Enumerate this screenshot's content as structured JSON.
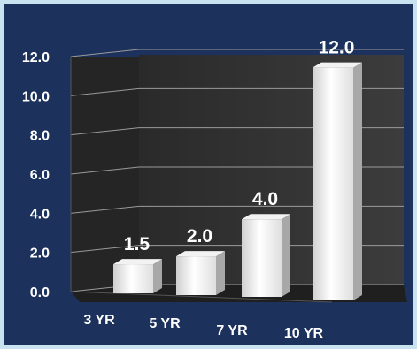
{
  "chart_data": {
    "type": "bar",
    "title": "",
    "xlabel": "",
    "ylabel": "",
    "categories": [
      "3 YR",
      "5 YR",
      "7 YR",
      "10 YR"
    ],
    "values": [
      1.5,
      2.0,
      4.0,
      12.0
    ],
    "data_labels": [
      "1.5",
      "2.0",
      "4.0",
      "12.0"
    ],
    "ylim": [
      0,
      12
    ],
    "y_ticks": [
      "0.0",
      "2.0",
      "4.0",
      "6.0",
      "8.0",
      "10.0",
      "12.0"
    ],
    "grid": true,
    "legend": "none",
    "style": "3d",
    "colors": {
      "background": "#1c325c",
      "border": "#c8e2f0",
      "bars": "#ffffff",
      "text": "#ffffff",
      "gridline": "#9a9a9a"
    }
  }
}
